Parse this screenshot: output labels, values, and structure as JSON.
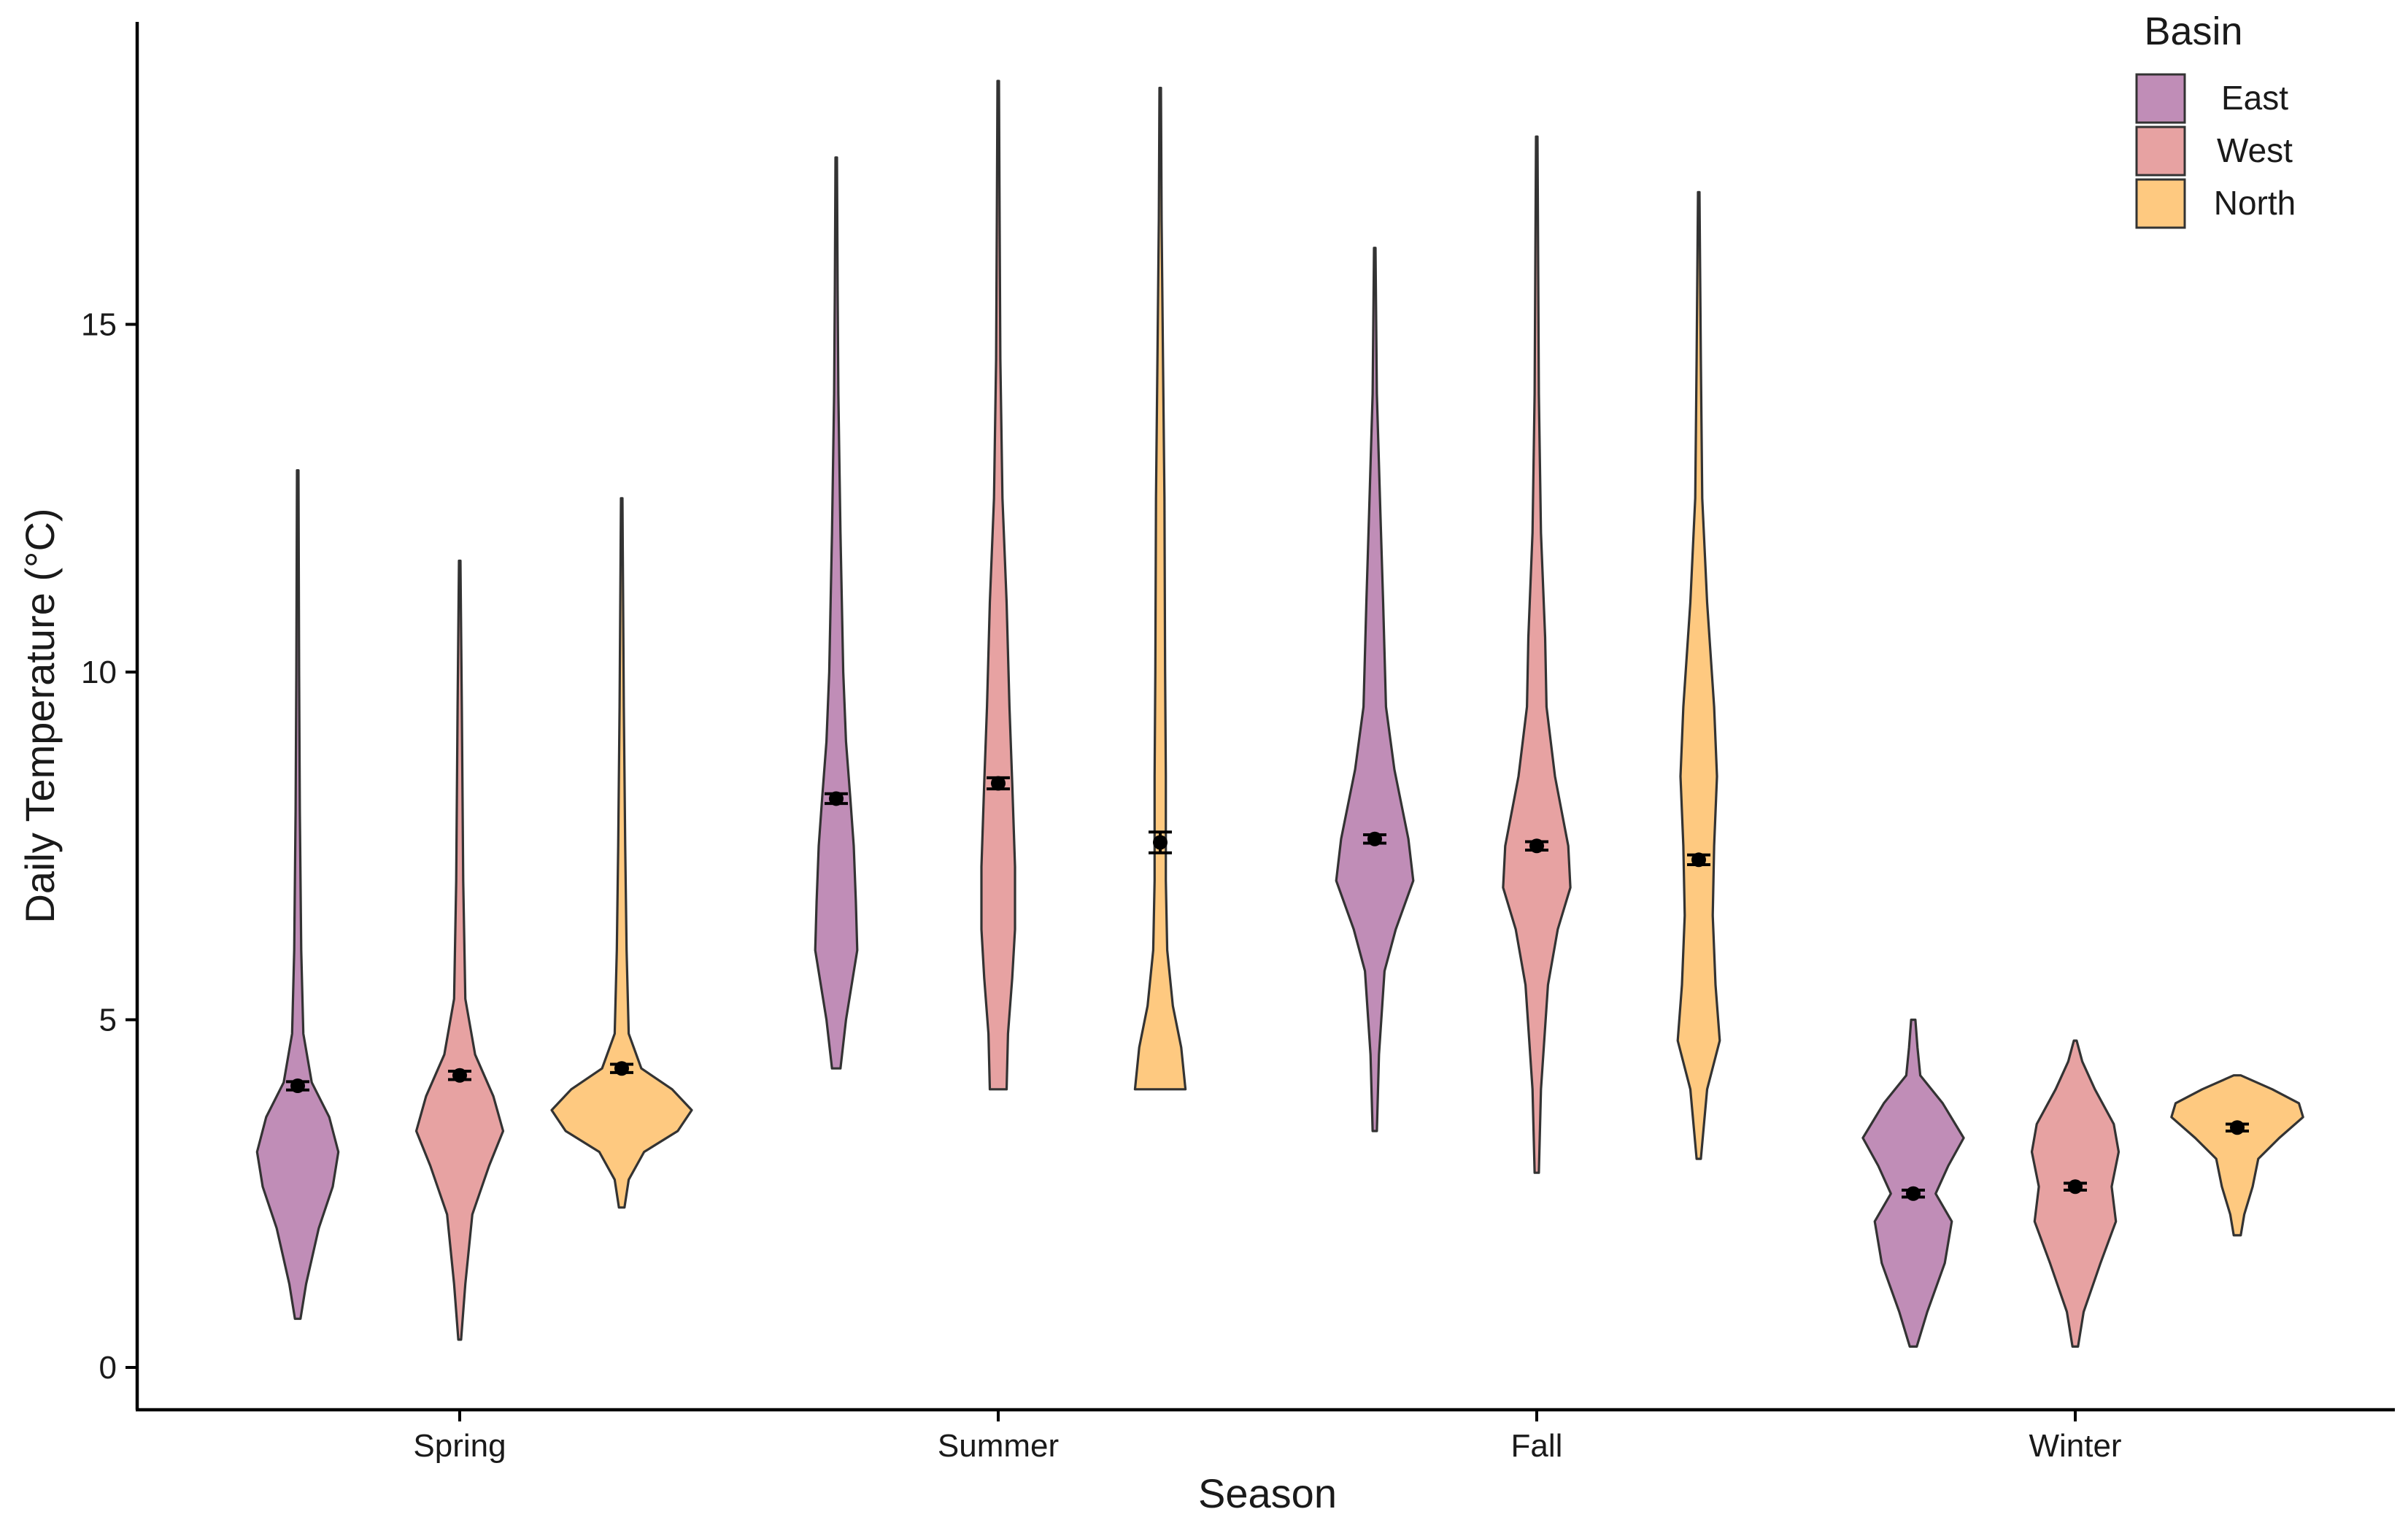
{
  "chart_data": {
    "type": "violin",
    "title": "",
    "xlabel": "Season",
    "ylabel": "Daily Temperature (°C)",
    "ylim": [
      -0.6,
      19.3
    ],
    "yticks": [
      0,
      5,
      10,
      15
    ],
    "categories": [
      "Spring",
      "Summer",
      "Fall",
      "Winter"
    ],
    "grid": false,
    "legend": {
      "title": "Basin",
      "position": "top-right"
    },
    "series": [
      {
        "name": "East",
        "color": "#C08DB7",
        "groups": [
          {
            "category": "Spring",
            "min": 0.7,
            "max": 12.9,
            "mean": 4.05,
            "se": 0.06,
            "density": [
              [
                0.7,
                0.04
              ],
              [
                1.2,
                0.12
              ],
              [
                2.0,
                0.3
              ],
              [
                2.6,
                0.5
              ],
              [
                3.1,
                0.58
              ],
              [
                3.6,
                0.45
              ],
              [
                4.1,
                0.2
              ],
              [
                4.8,
                0.08
              ],
              [
                6.0,
                0.05
              ],
              [
                8.0,
                0.03
              ],
              [
                10.0,
                0.02
              ],
              [
                12.9,
                0.01
              ]
            ]
          },
          {
            "category": "Summer",
            "min": 4.3,
            "max": 17.4,
            "mean": 8.18,
            "se": 0.07,
            "density": [
              [
                4.3,
                0.06
              ],
              [
                5.0,
                0.14
              ],
              [
                6.0,
                0.3
              ],
              [
                6.7,
                0.28
              ],
              [
                7.5,
                0.25
              ],
              [
                8.2,
                0.2
              ],
              [
                9.0,
                0.14
              ],
              [
                10.0,
                0.1
              ],
              [
                12.0,
                0.06
              ],
              [
                14.0,
                0.03
              ],
              [
                15.5,
                0.02
              ],
              [
                17.4,
                0.01
              ]
            ]
          },
          {
            "category": "Fall",
            "min": 3.4,
            "max": 16.1,
            "mean": 7.6,
            "se": 0.06,
            "density": [
              [
                3.4,
                0.03
              ],
              [
                4.5,
                0.06
              ],
              [
                5.7,
                0.14
              ],
              [
                6.3,
                0.3
              ],
              [
                7.0,
                0.55
              ],
              [
                7.6,
                0.48
              ],
              [
                8.6,
                0.28
              ],
              [
                9.5,
                0.16
              ],
              [
                11.0,
                0.12
              ],
              [
                12.3,
                0.08
              ],
              [
                14.0,
                0.03
              ],
              [
                16.1,
                0.01
              ]
            ]
          },
          {
            "category": "Winter",
            "min": 0.3,
            "max": 5.0,
            "mean": 2.5,
            "se": 0.05,
            "density": [
              [
                0.3,
                0.05
              ],
              [
                0.8,
                0.2
              ],
              [
                1.5,
                0.45
              ],
              [
                2.1,
                0.55
              ],
              [
                2.5,
                0.32
              ],
              [
                2.9,
                0.5
              ],
              [
                3.3,
                0.72
              ],
              [
                3.8,
                0.42
              ],
              [
                4.2,
                0.1
              ],
              [
                4.6,
                0.06
              ],
              [
                5.0,
                0.03
              ]
            ]
          }
        ]
      },
      {
        "name": "West",
        "color": "#E7A2A2",
        "groups": [
          {
            "category": "Spring",
            "min": 0.4,
            "max": 11.6,
            "mean": 4.2,
            "se": 0.06,
            "density": [
              [
                0.4,
                0.02
              ],
              [
                1.2,
                0.08
              ],
              [
                2.2,
                0.18
              ],
              [
                2.9,
                0.42
              ],
              [
                3.4,
                0.62
              ],
              [
                3.9,
                0.48
              ],
              [
                4.5,
                0.22
              ],
              [
                5.3,
                0.08
              ],
              [
                7.0,
                0.05
              ],
              [
                9.5,
                0.03
              ],
              [
                11.6,
                0.01
              ]
            ]
          },
          {
            "category": "Summer",
            "min": 4.0,
            "max": 18.5,
            "mean": 8.4,
            "se": 0.08,
            "density": [
              [
                4.0,
                0.12
              ],
              [
                4.8,
                0.14
              ],
              [
                5.6,
                0.2
              ],
              [
                6.3,
                0.24
              ],
              [
                7.2,
                0.24
              ],
              [
                8.4,
                0.2
              ],
              [
                9.5,
                0.16
              ],
              [
                11.0,
                0.12
              ],
              [
                12.5,
                0.06
              ],
              [
                14.5,
                0.03
              ],
              [
                16.5,
                0.02
              ],
              [
                18.5,
                0.01
              ]
            ]
          },
          {
            "category": "Fall",
            "min": 2.8,
            "max": 17.7,
            "mean": 7.5,
            "se": 0.06,
            "density": [
              [
                2.8,
                0.03
              ],
              [
                4.0,
                0.06
              ],
              [
                5.5,
                0.16
              ],
              [
                6.3,
                0.3
              ],
              [
                6.9,
                0.48
              ],
              [
                7.5,
                0.45
              ],
              [
                8.5,
                0.26
              ],
              [
                9.5,
                0.14
              ],
              [
                10.5,
                0.12
              ],
              [
                12.0,
                0.06
              ],
              [
                14.0,
                0.03
              ],
              [
                17.7,
                0.01
              ]
            ]
          },
          {
            "category": "Winter",
            "min": 0.3,
            "max": 4.7,
            "mean": 2.6,
            "se": 0.05,
            "density": [
              [
                0.3,
                0.04
              ],
              [
                0.8,
                0.12
              ],
              [
                1.5,
                0.36
              ],
              [
                2.1,
                0.58
              ],
              [
                2.6,
                0.52
              ],
              [
                3.1,
                0.62
              ],
              [
                3.5,
                0.55
              ],
              [
                4.0,
                0.28
              ],
              [
                4.4,
                0.1
              ],
              [
                4.7,
                0.02
              ]
            ]
          }
        ]
      },
      {
        "name": "North",
        "color": "#FEC980",
        "groups": [
          {
            "category": "Spring",
            "min": 2.3,
            "max": 12.5,
            "mean": 4.3,
            "se": 0.06,
            "density": [
              [
                2.3,
                0.04
              ],
              [
                2.7,
                0.1
              ],
              [
                3.1,
                0.32
              ],
              [
                3.4,
                0.8
              ],
              [
                3.7,
                1.0
              ],
              [
                4.0,
                0.72
              ],
              [
                4.3,
                0.28
              ],
              [
                4.8,
                0.1
              ],
              [
                6.0,
                0.07
              ],
              [
                7.5,
                0.05
              ],
              [
                9.5,
                0.03
              ],
              [
                12.5,
                0.01
              ]
            ]
          },
          {
            "category": "Summer",
            "min": 4.0,
            "max": 18.4,
            "mean": 7.55,
            "se": 0.15,
            "density": [
              [
                4.0,
                0.36
              ],
              [
                4.6,
                0.3
              ],
              [
                5.2,
                0.18
              ],
              [
                6.0,
                0.1
              ],
              [
                7.0,
                0.08
              ],
              [
                8.5,
                0.08
              ],
              [
                10.0,
                0.07
              ],
              [
                12.5,
                0.06
              ],
              [
                14.5,
                0.04
              ],
              [
                16.5,
                0.02
              ],
              [
                18.4,
                0.01
              ]
            ]
          },
          {
            "category": "Fall",
            "min": 3.0,
            "max": 16.9,
            "mean": 7.3,
            "se": 0.07,
            "density": [
              [
                3.0,
                0.03
              ],
              [
                4.0,
                0.12
              ],
              [
                4.7,
                0.3
              ],
              [
                5.5,
                0.24
              ],
              [
                6.5,
                0.2
              ],
              [
                7.5,
                0.22
              ],
              [
                8.5,
                0.26
              ],
              [
                9.5,
                0.22
              ],
              [
                11.0,
                0.12
              ],
              [
                12.5,
                0.05
              ],
              [
                14.5,
                0.03
              ],
              [
                16.9,
                0.01
              ]
            ]
          },
          {
            "category": "Winter",
            "min": 1.9,
            "max": 4.2,
            "mean": 3.45,
            "se": 0.05,
            "density": [
              [
                1.9,
                0.05
              ],
              [
                2.2,
                0.1
              ],
              [
                2.6,
                0.22
              ],
              [
                3.0,
                0.3
              ],
              [
                3.3,
                0.6
              ],
              [
                3.6,
                0.94
              ],
              [
                3.8,
                0.88
              ],
              [
                4.0,
                0.5
              ],
              [
                4.2,
                0.05
              ]
            ]
          }
        ]
      }
    ]
  }
}
